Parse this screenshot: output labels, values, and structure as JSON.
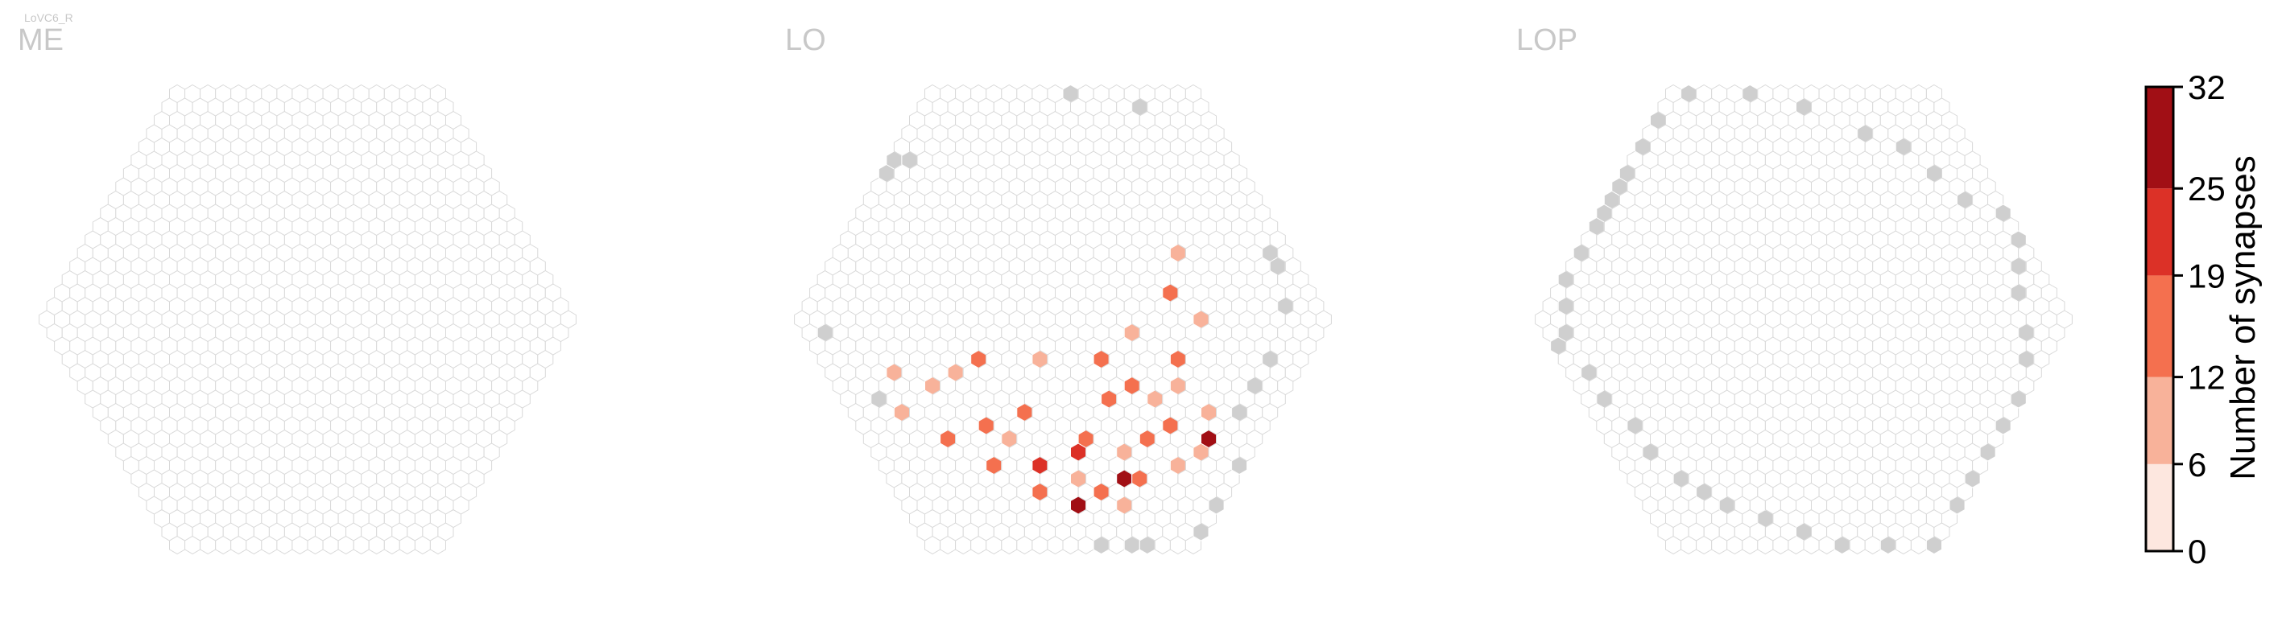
{
  "figure": {
    "cell_type_label": "LoVC6_R"
  },
  "colorbar": {
    "label": "Number of synapses",
    "ticks": [
      "0",
      "6",
      "12",
      "19",
      "25",
      "32"
    ],
    "bins": [
      0,
      6,
      12,
      19,
      25,
      32
    ],
    "colors": [
      "#fde7df",
      "#f8b29a",
      "#f4704f",
      "#dc3127",
      "#a10f15"
    ]
  },
  "colors": {
    "empty_hex_stroke": "#d9d9d9",
    "empty_hex_fill": "#ffffff",
    "edge_hex_fill": "#cfcfcf",
    "title_color": "#c8c8c8"
  },
  "chart_data": [
    {
      "type": "heatmap",
      "title": "ME",
      "grid_radius": 17,
      "cells": [],
      "edge_cells": []
    },
    {
      "type": "heatmap",
      "title": "LO",
      "grid_radius": 17,
      "cells": [
        {
          "q": -6,
          "r": 14,
          "v": 28
        },
        {
          "q": -2,
          "r": 12,
          "v": 30
        },
        {
          "q": 5,
          "r": 9,
          "v": 29
        },
        {
          "q": -8,
          "r": 13,
          "v": 13
        },
        {
          "q": -4,
          "r": 13,
          "v": 16
        },
        {
          "q": -1,
          "r": 12,
          "v": 14
        },
        {
          "q": -10,
          "r": 11,
          "v": 17
        },
        {
          "q": -7,
          "r": 11,
          "v": 20
        },
        {
          "q": -4,
          "r": 10,
          "v": 22
        },
        {
          "q": -3,
          "r": 9,
          "v": 19
        },
        {
          "q": 1,
          "r": 9,
          "v": 15
        },
        {
          "q": 3,
          "r": 8,
          "v": 18
        },
        {
          "q": -12,
          "r": 9,
          "v": 14
        },
        {
          "q": -9,
          "r": 8,
          "v": 15
        },
        {
          "q": -6,
          "r": 7,
          "v": 13
        },
        {
          "q": 0,
          "r": 6,
          "v": 14
        },
        {
          "q": 2,
          "r": 5,
          "v": 17
        },
        {
          "q": 6,
          "r": 3,
          "v": 15
        },
        {
          "q": -11,
          "r": 5,
          "v": 11
        },
        {
          "q": -9,
          "r": 4,
          "v": 8
        },
        {
          "q": -7,
          "r": 3,
          "v": 14
        },
        {
          "q": -3,
          "r": 3,
          "v": 10
        },
        {
          "q": 1,
          "r": 3,
          "v": 13
        },
        {
          "q": 8,
          "r": -2,
          "v": 15
        },
        {
          "q": 10,
          "r": -5,
          "v": 12
        },
        {
          "q": -14,
          "r": 7,
          "v": 9
        },
        {
          "q": -5,
          "r": 12,
          "v": 9
        },
        {
          "q": -3,
          "r": 14,
          "v": 8
        },
        {
          "q": 2,
          "r": 11,
          "v": 10
        },
        {
          "q": 4,
          "r": 10,
          "v": 8
        },
        {
          "q": 6,
          "r": 7,
          "v": 11
        },
        {
          "q": -8,
          "r": 9,
          "v": 10
        },
        {
          "q": -1,
          "r": 10,
          "v": 9
        },
        {
          "q": 3,
          "r": 6,
          "v": 9
        },
        {
          "q": 5,
          "r": 5,
          "v": 10
        },
        {
          "q": -13,
          "r": 4,
          "v": 7
        },
        {
          "q": 4,
          "r": 1,
          "v": 8
        },
        {
          "q": 9,
          "r": 0,
          "v": 7
        }
      ],
      "edge_cells": [
        {
          "q": 9,
          "r": -17
        },
        {
          "q": 13,
          "r": -16
        },
        {
          "q": -5,
          "r": -12
        },
        {
          "q": -4,
          "r": -12
        },
        {
          "q": -6,
          "r": -11
        },
        {
          "q": -12,
          "r": -6
        },
        {
          "q": -16,
          "r": 1
        },
        {
          "q": -15,
          "r": 6
        },
        {
          "q": 16,
          "r": -5
        },
        {
          "q": 16,
          "r": -4
        },
        {
          "q": 15,
          "r": -1
        },
        {
          "q": 12,
          "r": 3
        },
        {
          "q": 10,
          "r": 5
        },
        {
          "q": 8,
          "r": 7
        },
        {
          "q": 6,
          "r": 11
        },
        {
          "q": 3,
          "r": 14
        },
        {
          "q": 1,
          "r": 16
        },
        {
          "q": -3,
          "r": 17
        },
        {
          "q": -4,
          "r": 17
        },
        {
          "q": -6,
          "r": 17
        }
      ]
    },
    {
      "type": "heatmap",
      "title": "LOP",
      "grid_radius": 17,
      "cells": [],
      "edge_cells": [
        {
          "q": -6,
          "r": -11
        },
        {
          "q": -7,
          "r": -10
        },
        {
          "q": -8,
          "r": -9
        },
        {
          "q": -9,
          "r": -8
        },
        {
          "q": -10,
          "r": -7
        },
        {
          "q": -12,
          "r": -5
        },
        {
          "q": -14,
          "r": -3
        },
        {
          "q": -15,
          "r": -1
        },
        {
          "q": -16,
          "r": 1
        },
        {
          "q": -17,
          "r": 2
        },
        {
          "q": -16,
          "r": 4
        },
        {
          "q": -16,
          "r": 6
        },
        {
          "q": -15,
          "r": 8
        },
        {
          "q": -15,
          "r": 10
        },
        {
          "q": -14,
          "r": 12
        },
        {
          "q": -13,
          "r": 13
        },
        {
          "q": -12,
          "r": 14
        },
        {
          "q": -10,
          "r": 15
        },
        {
          "q": -8,
          "r": 16
        },
        {
          "q": -6,
          "r": 17
        },
        {
          "q": -3,
          "r": 17
        },
        {
          "q": 0,
          "r": 17
        },
        {
          "q": 3,
          "r": 14
        },
        {
          "q": 5,
          "r": 12
        },
        {
          "q": 7,
          "r": 10
        },
        {
          "q": 9,
          "r": 8
        },
        {
          "q": 11,
          "r": 6
        },
        {
          "q": 13,
          "r": 3
        },
        {
          "q": 14,
          "r": 1
        },
        {
          "q": 15,
          "r": -2
        },
        {
          "q": 16,
          "r": -4
        },
        {
          "q": 17,
          "r": -6
        },
        {
          "q": 17,
          "r": -8
        },
        {
          "q": 15,
          "r": -9
        },
        {
          "q": 14,
          "r": -11
        },
        {
          "q": 13,
          "r": -13
        },
        {
          "q": 11,
          "r": -14
        },
        {
          "q": 8,
          "r": -16
        },
        {
          "q": 5,
          "r": -17
        },
        {
          "q": 1,
          "r": -17
        },
        {
          "q": -2,
          "r": -15
        },
        {
          "q": -4,
          "r": -13
        }
      ]
    }
  ]
}
